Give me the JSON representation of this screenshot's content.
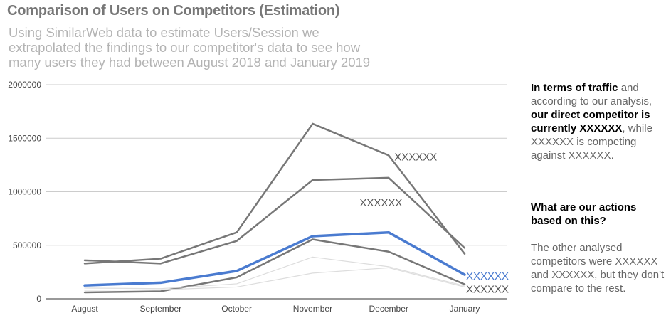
{
  "title": "Comparison of Users on Competitors (Estimation)",
  "subtitle_lines": [
    "Using SimilarWeb data to estimate Users/Session we",
    "extrapolated the findings to our competitor's data to see how",
    "many users they had between August 2018 and January 2019"
  ],
  "chart_data": {
    "type": "line",
    "title": "Comparison of Users on Competitors (Estimation)",
    "xlabel": "",
    "ylabel": "",
    "categories": [
      "August",
      "September",
      "October",
      "November",
      "December",
      "January"
    ],
    "ylim": [
      0,
      2000000
    ],
    "yticks": [
      "0",
      "500000",
      "1000000",
      "1500000",
      "2000000"
    ],
    "grid": true,
    "series": [
      {
        "values": [
          330000,
          375000,
          620000,
          1635000,
          1340000,
          420000
        ],
        "color": "#777777",
        "width": 2.5
      },
      {
        "values": [
          360000,
          330000,
          540000,
          1110000,
          1130000,
          475000
        ],
        "color": "#777777",
        "width": 2.5
      },
      {
        "values": [
          60000,
          70000,
          200000,
          555000,
          440000,
          135000
        ],
        "color": "#777777",
        "width": 2.5
      },
      {
        "values": [
          100000,
          95000,
          140000,
          390000,
          300000,
          120000
        ],
        "color": "#dddddd",
        "width": 1.2
      },
      {
        "values": [
          80000,
          85000,
          110000,
          240000,
          290000,
          110000
        ],
        "color": "#dddddd",
        "width": 1.2
      },
      {
        "values": [
          125000,
          150000,
          260000,
          585000,
          620000,
          225000
        ],
        "color": "#4a7bd0",
        "width": 3.5
      }
    ],
    "annotations": [
      {
        "text": "XXXXXX",
        "color": "#555555"
      },
      {
        "text": "XXXXXX",
        "color": "#555555"
      },
      {
        "text": "XXXXXX",
        "color": "#4a7bd0"
      },
      {
        "text": "XXXXXX",
        "color": "#555555"
      }
    ]
  },
  "side": {
    "p1_bold1": "In terms of traffic",
    "p1_text1": " and according to our analysis, ",
    "p1_bold2": "our direct competitor is currently XXXXXX",
    "p1_text2": ", while XXXXXX is competing against XXXXXX.",
    "p2": "What are our actions based on this?",
    "p3": "The other analysed competitors were XXXXXX and XXXXXX, but they don't compare to the rest."
  }
}
